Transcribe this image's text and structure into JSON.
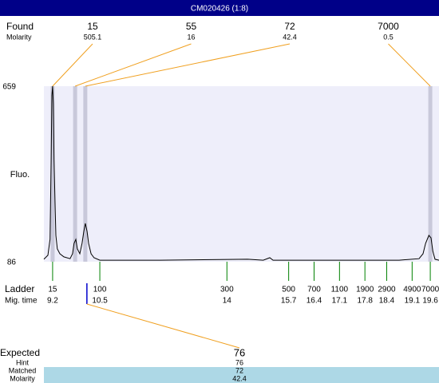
{
  "title": "CM020426 (1:8)",
  "found": {
    "label": "Found",
    "molarity_label": "Molarity",
    "peaks": [
      {
        "size": 15,
        "molarity": 505.1,
        "time": 9.2
      },
      {
        "size": 55,
        "molarity": 16,
        "time": 9.82
      },
      {
        "size": 72,
        "molarity": 42.4,
        "time": 10.1
      },
      {
        "size": 7000,
        "molarity": 0.5,
        "time": 19.6
      }
    ]
  },
  "y_axis": {
    "label": "Fluo.",
    "ylim": [
      86,
      659
    ],
    "yticks": [
      86,
      659
    ]
  },
  "xlim": [
    8.96,
    19.84
  ],
  "trace": {
    "x": [
      8.96,
      9.07,
      9.13,
      9.16,
      9.18,
      9.2,
      9.22,
      9.24,
      9.27,
      9.29,
      9.33,
      9.4,
      9.51,
      9.68,
      9.75,
      9.79,
      9.84,
      9.88,
      9.95,
      10.01,
      10.06,
      10.1,
      10.15,
      10.19,
      10.26,
      10.34,
      10.5,
      12.15,
      14.57,
      15.0,
      15.18,
      15.27,
      18.74,
      19.29,
      19.4,
      19.47,
      19.56,
      19.62,
      19.67,
      19.73,
      19.84
    ],
    "y": [
      94,
      107,
      159,
      419,
      628,
      659,
      602,
      419,
      263,
      172,
      128,
      112,
      102,
      96,
      112,
      146,
      159,
      128,
      112,
      146,
      185,
      211,
      185,
      146,
      112,
      99,
      91,
      91,
      94,
      91,
      99,
      91,
      91,
      96,
      112,
      146,
      172,
      164,
      120,
      94,
      91
    ]
  },
  "ladder": {
    "label": "Ladder",
    "time_label": "Mig. time",
    "sizes": [
      15,
      100,
      300,
      500,
      700,
      1100,
      1900,
      2900,
      4900,
      7000
    ],
    "times": [
      9.2,
      10.5,
      14,
      15.7,
      16.4,
      17.1,
      17.8,
      18.4,
      19.1,
      19.6
    ]
  },
  "expected": {
    "label": "Expected",
    "value": 76,
    "hint_label": "Hint",
    "hint": 76,
    "matched_label": "Matched",
    "matched": 72,
    "molarity_label": "Molarity",
    "molarity": 42.4
  }
}
